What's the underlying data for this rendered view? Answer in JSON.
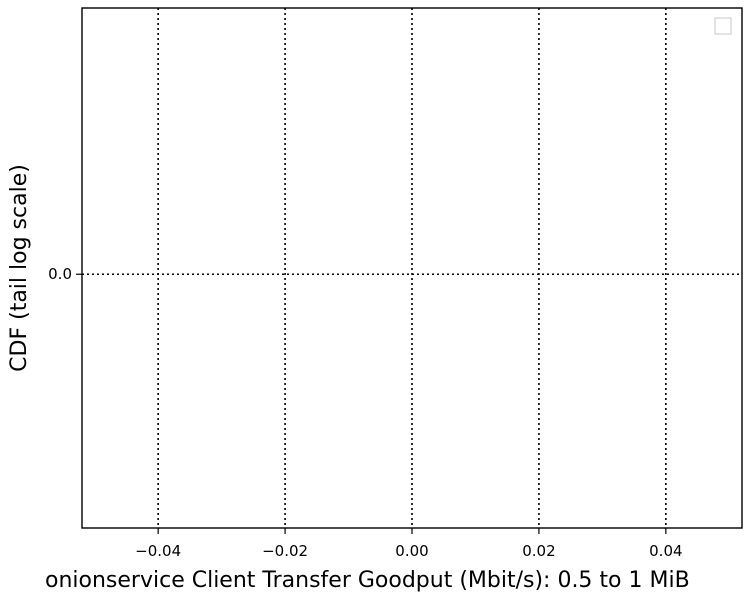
{
  "chart_data": {
    "type": "line",
    "title": "",
    "xlabel": "onionservice Client Transfer Goodput (Mbit/s): 0.5 to 1 MiB",
    "ylabel": "CDF (tail log scale)",
    "xlim": [
      -0.052,
      0.052
    ],
    "x_ticks": [
      -0.04,
      -0.02,
      0.0,
      0.02,
      0.04
    ],
    "x_tick_labels": [
      "−0.04",
      "−0.02",
      "0.00",
      "0.02",
      "0.04"
    ],
    "y_ticks": [
      0.0
    ],
    "y_tick_labels": [
      "0.0"
    ],
    "y_scale": "tail log",
    "grid": true,
    "grid_style": "dotted",
    "legend": {
      "placement": "top-right",
      "entries": []
    },
    "series": []
  },
  "colors": {
    "axis": "#000000",
    "grid": "#000000",
    "legend_border": "#d0d0d0"
  }
}
